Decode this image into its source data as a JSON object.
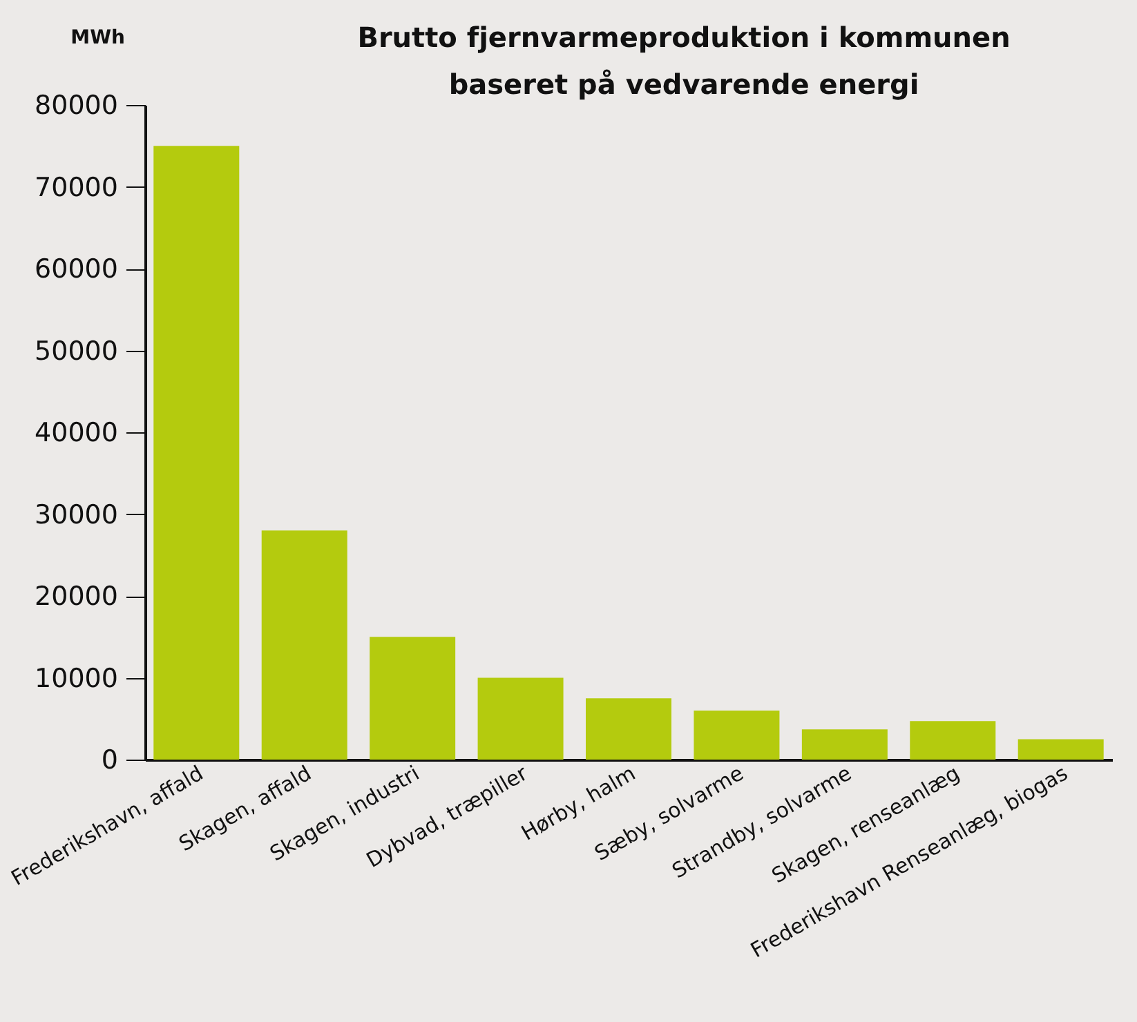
{
  "chart_data": {
    "type": "bar",
    "title": [
      "Brutto fjernvarmeproduktion i kommunen",
      "baseret på vedvarende energi"
    ],
    "ylabel": "MWh",
    "categories": [
      "Frederikshavn, affald",
      "Skagen, affald",
      "Skagen, industri",
      "Dybvad, træpiller",
      "Hørby, halm",
      "Sæby, solvarme",
      "Strandby, solvarme",
      "Skagen, renseanlæg",
      "Frederikshavn Renseanlæg, biogas"
    ],
    "values": [
      75000,
      28000,
      15000,
      10000,
      7500,
      6000,
      3700,
      4700,
      2500
    ],
    "color": "#b4cb0e",
    "ylim": [
      0,
      80000
    ],
    "yticks": [
      0,
      10000,
      20000,
      30000,
      40000,
      50000,
      60000,
      70000,
      80000
    ],
    "grid": false
  }
}
